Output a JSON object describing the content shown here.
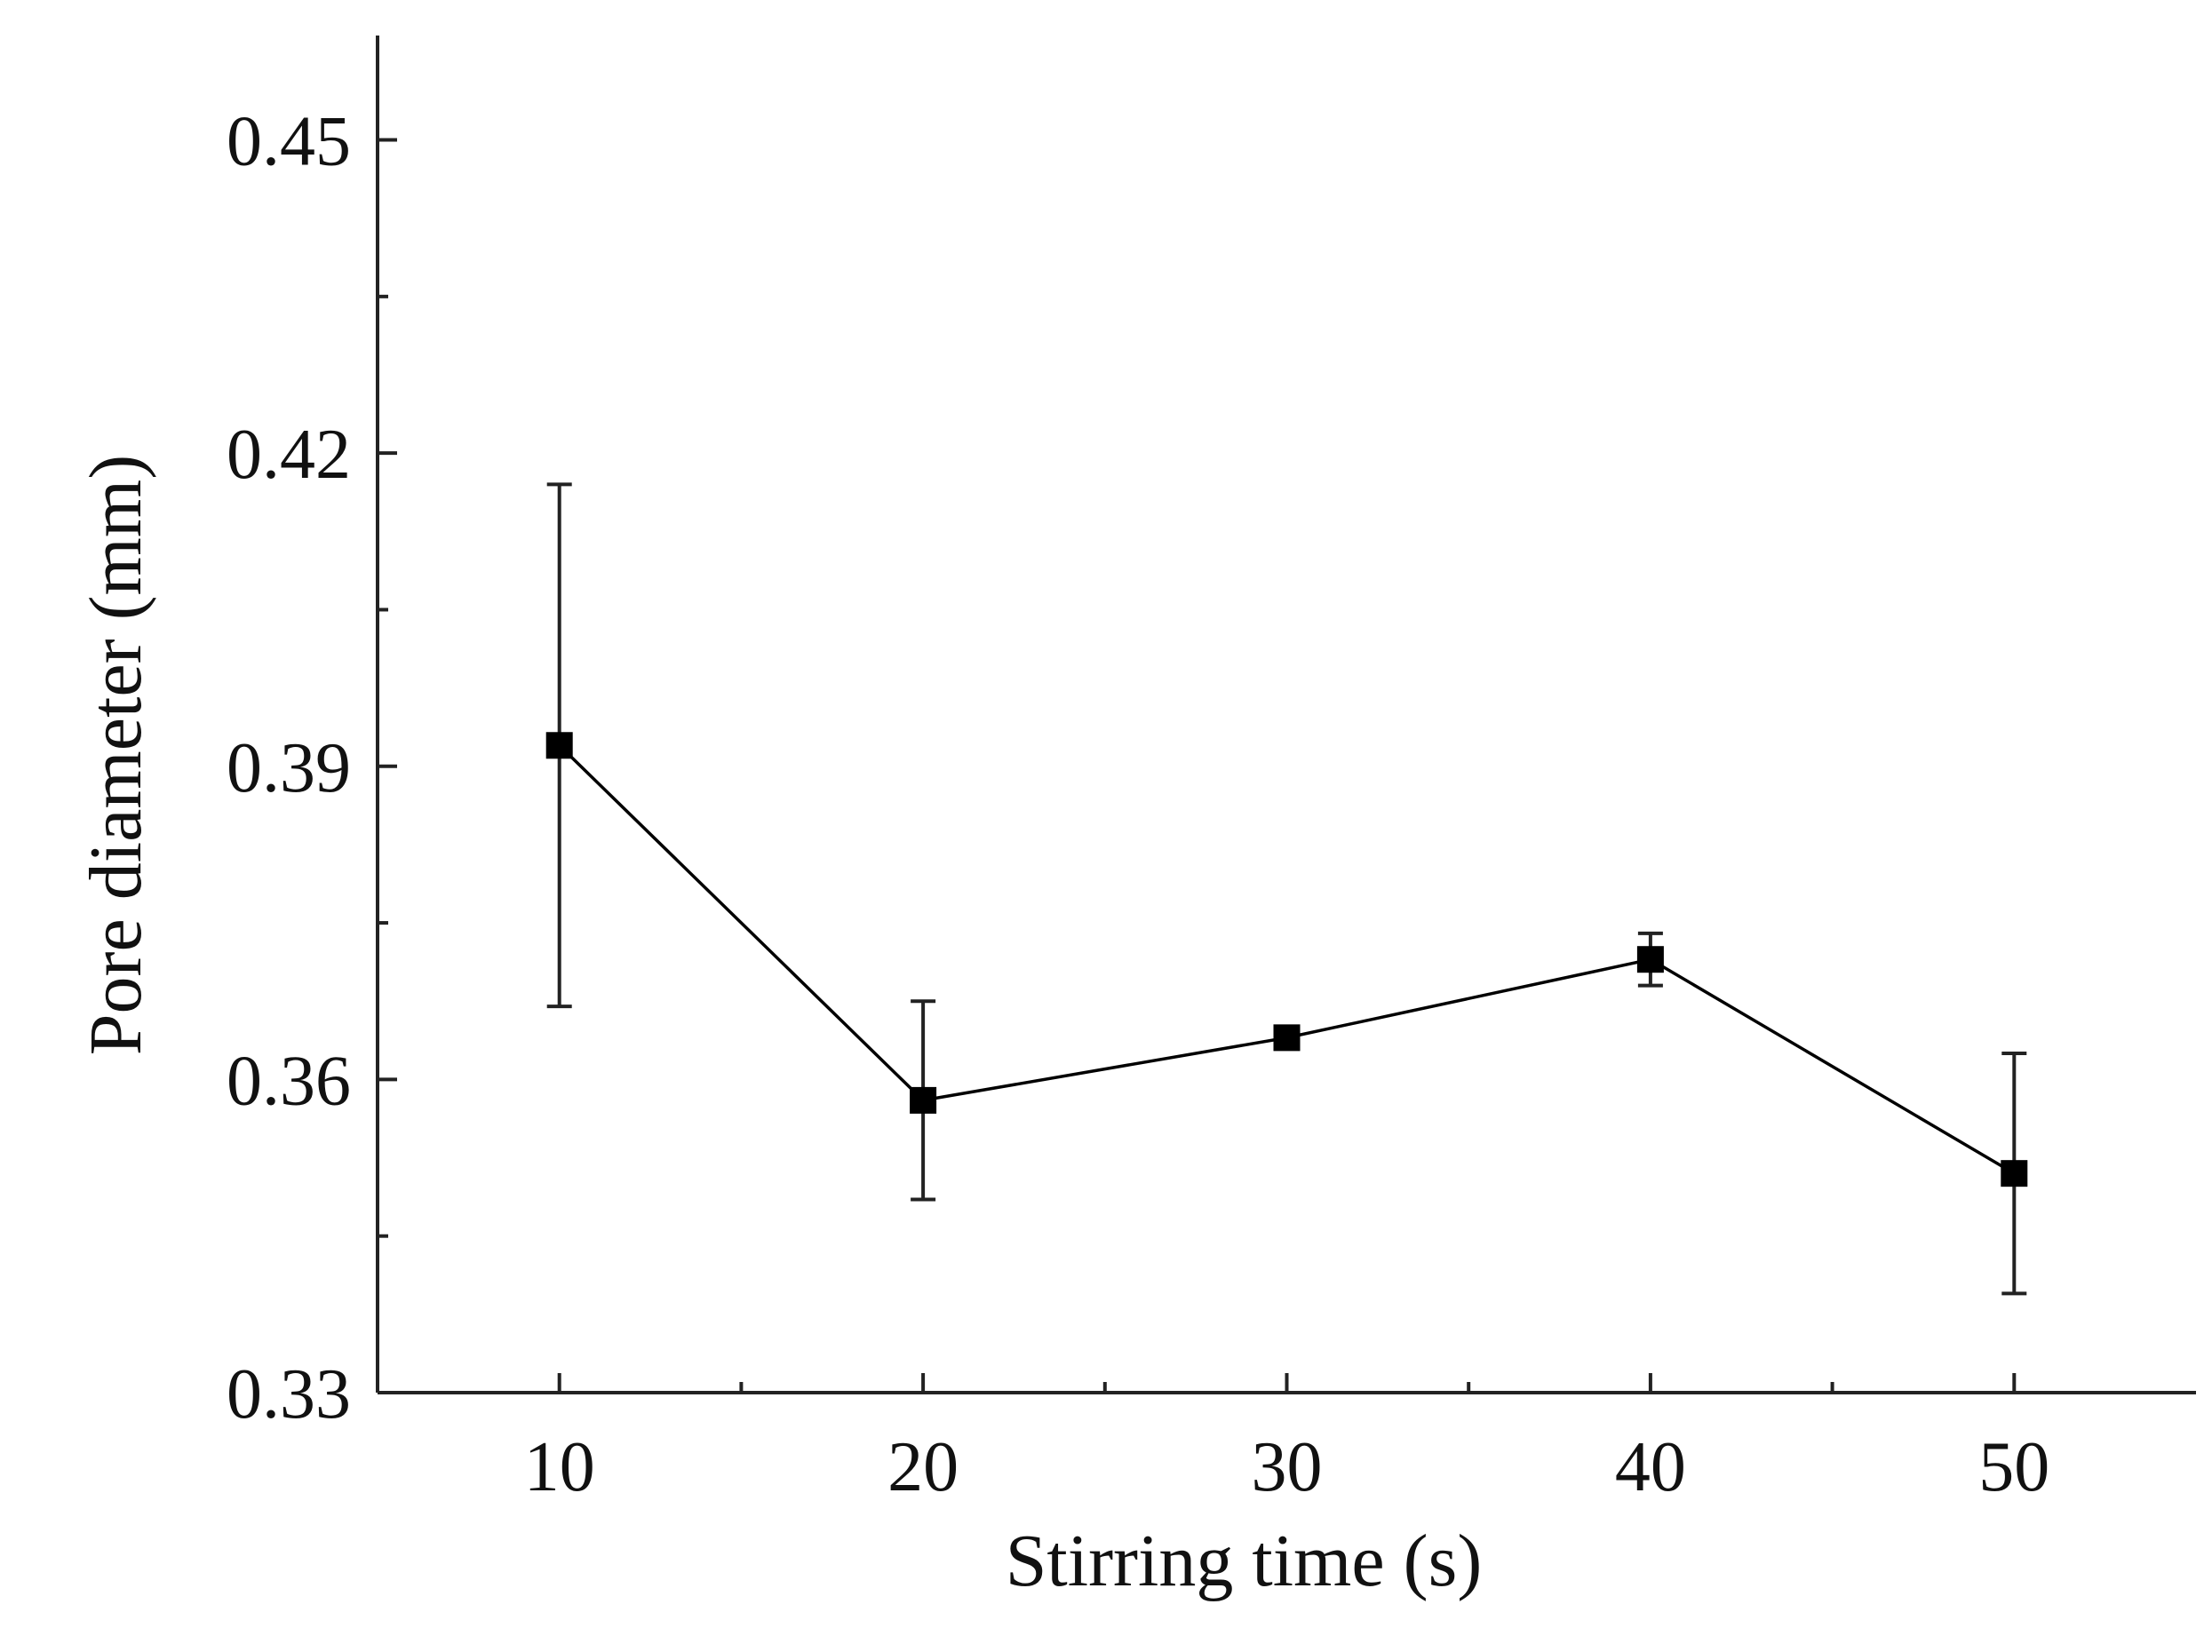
{
  "chart_data": {
    "type": "line",
    "title": "",
    "xlabel": "Stirring time (s)",
    "ylabel": "Pore diameter (mm)",
    "xlim": [
      5,
      55
    ],
    "ylim": [
      0.33,
      0.46
    ],
    "x_ticks": [
      10,
      20,
      30,
      40,
      50
    ],
    "x_tick_labels": [
      "10",
      "20",
      "30",
      "40",
      "50"
    ],
    "x_minor_ticks": [
      15,
      25,
      35,
      45
    ],
    "y_ticks": [
      0.33,
      0.36,
      0.39,
      0.42,
      0.45
    ],
    "y_tick_labels": [
      "0.33",
      "0.36",
      "0.39",
      "0.42",
      "0.45"
    ],
    "y_minor_ticks": [
      0.345,
      0.375,
      0.405,
      0.435
    ],
    "grid": false,
    "series": [
      {
        "name": "Pore diameter",
        "color": "#000000",
        "marker": "square",
        "x": [
          10,
          20,
          30,
          40,
          50
        ],
        "values": [
          0.392,
          0.358,
          0.364,
          0.3715,
          0.351
        ],
        "error": [
          0.025,
          0.0095,
          0.001,
          0.0025,
          0.0115
        ]
      }
    ]
  }
}
